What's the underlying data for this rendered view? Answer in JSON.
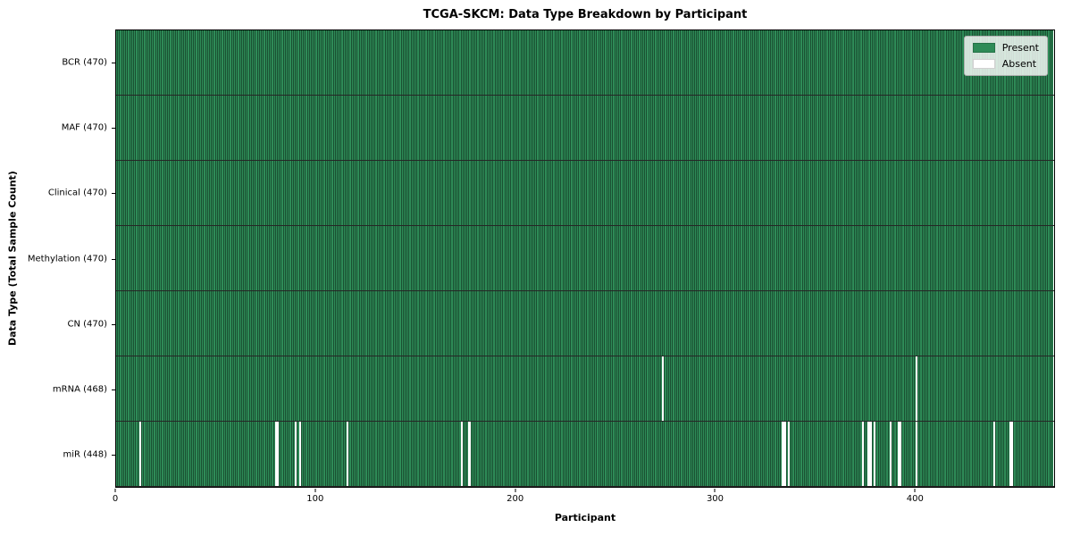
{
  "chart_data": {
    "type": "heatmap",
    "title": "TCGA-SKCM: Data Type Breakdown by Participant",
    "xlabel": "Participant",
    "ylabel": "Data Type (Total Sample Count)",
    "n_participants": 470,
    "x_ticks": [
      0,
      100,
      200,
      300,
      400
    ],
    "xlim": [
      0,
      470
    ],
    "grid": false,
    "colors": {
      "present": "#2e8b57",
      "absent": "#ffffff",
      "cell_edge": "rgba(0,0,0,0.42)"
    },
    "legend": {
      "position": "upper right",
      "entries": [
        {
          "label": "Present",
          "color": "#2e8b57"
        },
        {
          "label": "Absent",
          "color": "#ffffff"
        }
      ]
    },
    "rows": [
      {
        "data_type": "BCR",
        "label": "BCR (470)",
        "present_count": 470,
        "absent_participants": []
      },
      {
        "data_type": "MAF",
        "label": "MAF (470)",
        "present_count": 470,
        "absent_participants": []
      },
      {
        "data_type": "Clinical",
        "label": "Clinical (470)",
        "present_count": 470,
        "absent_participants": []
      },
      {
        "data_type": "Methylation",
        "label": "Methylation (470)",
        "present_count": 470,
        "absent_participants": []
      },
      {
        "data_type": "CN",
        "label": "CN (470)",
        "present_count": 470,
        "absent_participants": []
      },
      {
        "data_type": "mRNA",
        "label": "mRNA (468)",
        "present_count": 468,
        "absent_participants": [
          274,
          401
        ]
      },
      {
        "data_type": "miR",
        "label": "miR (448)",
        "present_count": 448,
        "absent_participants": [
          12,
          80,
          81,
          90,
          92,
          116,
          173,
          177,
          334,
          335,
          337,
          374,
          377,
          378,
          380,
          388,
          392,
          393,
          401,
          440,
          448,
          449
        ]
      }
    ]
  }
}
